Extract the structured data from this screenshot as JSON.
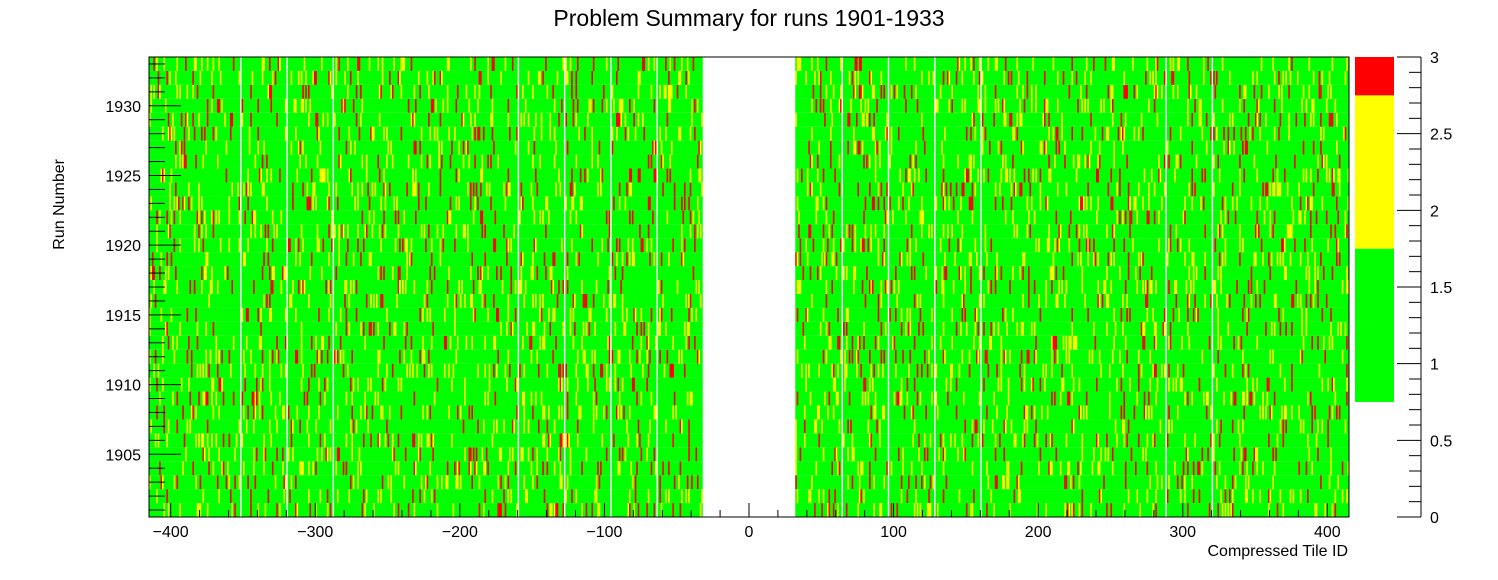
{
  "chart_data": {
    "type": "heatmap",
    "title": "Problem Summary for runs 1901-1933",
    "xlabel": "Compressed Tile ID",
    "ylabel": "Run Number",
    "xlim": [
      -415,
      415
    ],
    "ylim": [
      1900.5,
      1933.5
    ],
    "x_ticks": [
      -400,
      -300,
      -200,
      -100,
      0,
      100,
      200,
      300,
      400
    ],
    "x_tick_labels": [
      "−400",
      "−300",
      "−200",
      "−100",
      "0",
      "100",
      "200",
      "300",
      "400"
    ],
    "y_ticks": [
      1905,
      1910,
      1915,
      1920,
      1925,
      1930
    ],
    "y_tick_labels": [
      "1905",
      "1910",
      "1915",
      "1920",
      "1925",
      "1930"
    ],
    "runs": [
      1901,
      1933
    ],
    "empty_tile_range": [
      -32,
      32
    ],
    "empty_tile_columns": [
      -352,
      -320,
      -288,
      -160,
      -128,
      -96,
      -64,
      64,
      96,
      128,
      160,
      288,
      320
    ],
    "cell_value_fractions": {
      "1": 0.85,
      "2": 0.09,
      "3": 0.06
    },
    "colorbar": {
      "zlim": [
        0,
        3
      ],
      "ticks": [
        0,
        0.5,
        1,
        1.5,
        2,
        2.5,
        3
      ],
      "tick_labels": [
        "0",
        "0.5",
        "1",
        "1.5",
        "2",
        "2.5",
        "3"
      ],
      "bands": [
        {
          "from": 0.75,
          "to": 1.75,
          "color": "#00ff00"
        },
        {
          "from": 1.75,
          "to": 2.75,
          "color": "#ffff00"
        },
        {
          "from": 2.75,
          "to": 3.0,
          "color": "#ff0000"
        }
      ]
    },
    "colors": {
      "value_1": "#00ff00",
      "value_2": "#ffff00",
      "value_3": "#ff0000"
    },
    "grid": false,
    "legend": "colorbar-right"
  }
}
